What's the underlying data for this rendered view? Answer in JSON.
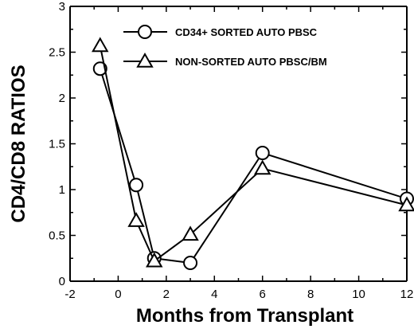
{
  "chart_data": {
    "type": "line",
    "title": "",
    "xlabel": "Months from Transplant",
    "ylabel": "CD4/CD8 RATIOS",
    "xlim": [
      -2,
      12
    ],
    "ylim": [
      0,
      3
    ],
    "xticks": [
      -2,
      0,
      2,
      4,
      6,
      8,
      10,
      12
    ],
    "yticks": [
      0,
      0.5,
      1,
      1.5,
      2,
      2.5,
      3
    ],
    "xtick_labels": [
      "-2",
      "0",
      "2",
      "4",
      "6",
      "8",
      "10",
      "12"
    ],
    "ytick_labels": [
      "0",
      "0.5",
      "1",
      "1.5",
      "2",
      "2.5",
      "3"
    ],
    "grid": false,
    "legend_position": "top-right",
    "series": [
      {
        "name": "CD34+ SORTED AUTO PBSC",
        "marker": "circle",
        "x": [
          -0.75,
          0.75,
          1.5,
          3,
          6,
          12
        ],
        "y": [
          2.32,
          1.05,
          0.25,
          0.2,
          1.4,
          0.9
        ]
      },
      {
        "name": "NON-SORTED AUTO PBSC/BM",
        "marker": "triangle",
        "x": [
          -0.75,
          0.75,
          1.5,
          3,
          6,
          12
        ],
        "y": [
          2.57,
          0.66,
          0.22,
          0.51,
          1.23,
          0.83
        ]
      }
    ]
  }
}
